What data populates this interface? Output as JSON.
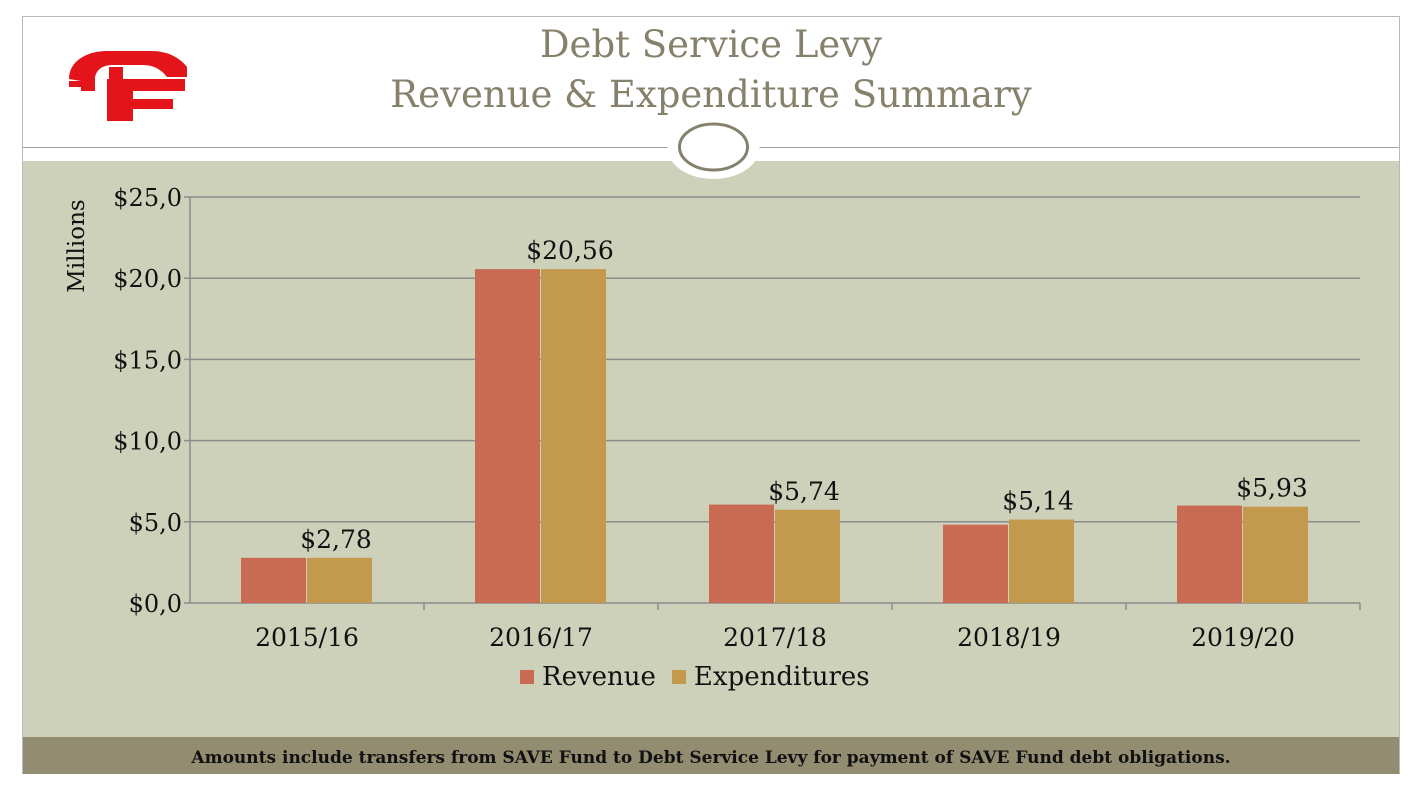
{
  "slide": {
    "title_line1": "Debt Service Levy",
    "title_line2": "Revenue & Expenditure Summary",
    "footnote": "Amounts include transfers from SAVE Fund to Debt Service Levy for payment of SAVE Fund debt obligations.",
    "logo_text": "F",
    "colors": {
      "background": "#cdd1ba",
      "footer": "#928c70",
      "title": "#85816a",
      "logo": "#e3151b"
    }
  },
  "chart_data": {
    "type": "bar",
    "title": "",
    "xlabel": "",
    "ylabel": "Millions",
    "ylim": [
      0,
      25
    ],
    "yticks": [
      0,
      5,
      10,
      15,
      20,
      25
    ],
    "ytick_labels": [
      "$0,0",
      "$5,0",
      "$10,0",
      "$15,0",
      "$20,0",
      "$25,0"
    ],
    "categories": [
      "2015/16",
      "2016/17",
      "2017/18",
      "2018/19",
      "2019/20"
    ],
    "series": [
      {
        "name": "Revenue",
        "color": "#c96a52",
        "values": [
          2.78,
          20.56,
          6.06,
          4.82,
          6.0
        ]
      },
      {
        "name": "Expenditures",
        "color": "#c3994d",
        "values": [
          2.78,
          20.56,
          5.74,
          5.14,
          5.93
        ]
      }
    ],
    "data_labels": [
      "$2,78",
      "$20,56",
      "$5,74",
      "$5,14",
      "$5,93"
    ],
    "legend": {
      "position": "bottom",
      "entries": [
        "Revenue",
        "Expenditures"
      ]
    },
    "grid": true
  }
}
